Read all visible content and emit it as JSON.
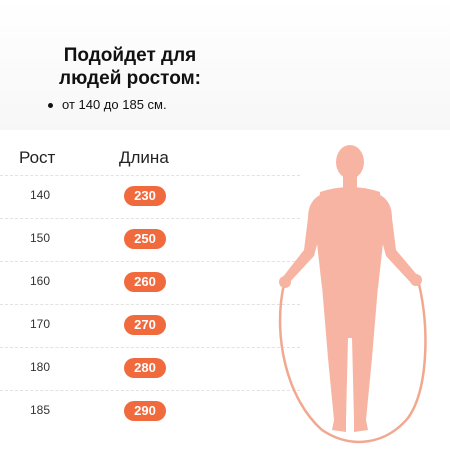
{
  "info": {
    "title_line1": "Подойдет для",
    "title_line2": "людей ростом:",
    "bullet": "от 140 до 185 см."
  },
  "table": {
    "header_height": "Рост",
    "header_length": "Длина",
    "rows": [
      {
        "height": "140",
        "length": "230"
      },
      {
        "height": "150",
        "length": "250"
      },
      {
        "height": "160",
        "length": "260"
      },
      {
        "height": "170",
        "length": "270"
      },
      {
        "height": "180",
        "length": "280"
      },
      {
        "height": "185",
        "length": "290"
      }
    ]
  },
  "colors": {
    "accent": "#f06a3d",
    "figure": "#f8b4a2",
    "rope": "#f2a88f"
  },
  "icons": {
    "figure": "person-with-jump-rope-illustration"
  }
}
